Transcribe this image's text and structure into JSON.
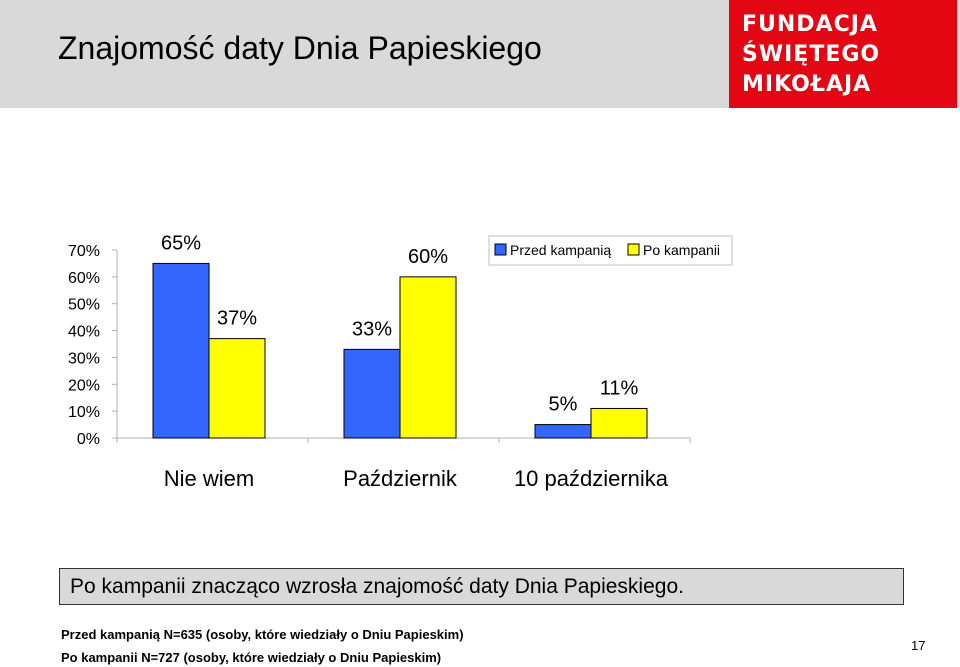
{
  "slide": {
    "title": "Znajomość daty Dnia Papieskiego",
    "logo_lines": [
      "FUNDACJA",
      "ŚWIĘTEGO",
      "MIKOŁAJA"
    ],
    "logo_color": "#e30613",
    "summary": "Po kampanii znacząco wzrosła znajomość daty Dnia Papieskiego.",
    "notes": [
      "Przed kampanią N=635 (osoby, które wiedziały o Dniu Papieskim)",
      "Po kampanii N=727 (osoby, które wiedziały o Dniu Papieskim)"
    ],
    "page_number": "17"
  },
  "chart_data": {
    "type": "bar",
    "categories": [
      "Nie wiem",
      "Październik",
      "10 października"
    ],
    "series": [
      {
        "name": "Przed kampanią",
        "values": [
          65,
          33,
          5
        ],
        "labels": [
          "65%",
          "33%",
          "5%"
        ],
        "color": "#3366ff"
      },
      {
        "name": "Po kampanii",
        "values": [
          37,
          60,
          11
        ],
        "labels": [
          "37%",
          "60%",
          "11%"
        ],
        "color": "#ffff00"
      }
    ],
    "y_ticks": [
      "0%",
      "10%",
      "20%",
      "30%",
      "40%",
      "50%",
      "60%",
      "70%"
    ],
    "ylim": [
      0,
      70
    ],
    "legend_position": "top-right",
    "grid": false
  }
}
